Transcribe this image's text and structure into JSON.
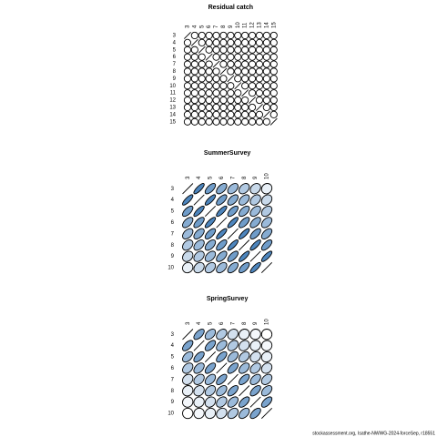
{
  "chart_data": [
    {
      "type": "ellipse-matrix",
      "title": "Residual catch",
      "labels": [
        "3",
        "4",
        "5",
        "6",
        "7",
        "8",
        "9",
        "10",
        "11",
        "12",
        "13",
        "14",
        "15"
      ],
      "color_low": "#ffffff",
      "color_high": "#2166ac",
      "matrix": [
        [
          1,
          0,
          0,
          0,
          0,
          0,
          0,
          0,
          0,
          0,
          0,
          0,
          0
        ],
        [
          0,
          1,
          0,
          0,
          0,
          0,
          0,
          0,
          0,
          0,
          0,
          0,
          0
        ],
        [
          0,
          0,
          1,
          0,
          0,
          0,
          0,
          0,
          0,
          0,
          0,
          0,
          0
        ],
        [
          0,
          0,
          0,
          1,
          0,
          0,
          0,
          0,
          0,
          0,
          0,
          0,
          0
        ],
        [
          0,
          0,
          0,
          0,
          1,
          0,
          0,
          0,
          0,
          0,
          0,
          0,
          0
        ],
        [
          0,
          0,
          0,
          0,
          0,
          1,
          0,
          0,
          0,
          0,
          0,
          0,
          0
        ],
        [
          0,
          0,
          0,
          0,
          0,
          0,
          1,
          0,
          0,
          0,
          0,
          0,
          0
        ],
        [
          0,
          0,
          0,
          0,
          0,
          0,
          0,
          1,
          0,
          0,
          0,
          0,
          0
        ],
        [
          0,
          0,
          0,
          0,
          0,
          0,
          0,
          0,
          1,
          0,
          0,
          0,
          0
        ],
        [
          0,
          0,
          0,
          0,
          0,
          0,
          0,
          0,
          0,
          1,
          0,
          0,
          0
        ],
        [
          0,
          0,
          0,
          0,
          0,
          0,
          0,
          0,
          0,
          0,
          1,
          0,
          0
        ],
        [
          0,
          0,
          0,
          0,
          0,
          0,
          0,
          0,
          0,
          0,
          0,
          1,
          0
        ],
        [
          0,
          0,
          0,
          0,
          0,
          0,
          0,
          0,
          0,
          0,
          0,
          0,
          1
        ]
      ]
    },
    {
      "type": "ellipse-matrix",
      "title": "SummerSurvey",
      "labels": [
        "3",
        "4",
        "5",
        "6",
        "7",
        "8",
        "9",
        "10"
      ],
      "color_low": "#ffffff",
      "color_high": "#2166ac",
      "matrix": [
        [
          1,
          0.8,
          0.65,
          0.55,
          0.45,
          0.35,
          0.25,
          0.1
        ],
        [
          0.8,
          1,
          0.8,
          0.65,
          0.55,
          0.45,
          0.35,
          0.25
        ],
        [
          0.65,
          0.8,
          1,
          0.8,
          0.65,
          0.55,
          0.45,
          0.35
        ],
        [
          0.55,
          0.65,
          0.8,
          1,
          0.8,
          0.65,
          0.55,
          0.45
        ],
        [
          0.45,
          0.55,
          0.65,
          0.8,
          1,
          0.8,
          0.65,
          0.55
        ],
        [
          0.35,
          0.45,
          0.55,
          0.65,
          0.8,
          1,
          0.8,
          0.65
        ],
        [
          0.25,
          0.35,
          0.45,
          0.55,
          0.65,
          0.8,
          1,
          0.8
        ],
        [
          0.1,
          0.25,
          0.35,
          0.45,
          0.55,
          0.65,
          0.8,
          1
        ]
      ]
    },
    {
      "type": "ellipse-matrix",
      "title": "SpringSurvey",
      "labels": [
        "3",
        "4",
        "5",
        "6",
        "7",
        "8",
        "9",
        "10"
      ],
      "color_low": "#ffffff",
      "color_high": "#2166ac",
      "matrix": [
        [
          1,
          0.6,
          0.45,
          0.35,
          0.2,
          0.1,
          0.05,
          0
        ],
        [
          0.6,
          1,
          0.6,
          0.45,
          0.35,
          0.2,
          0.1,
          0.05
        ],
        [
          0.45,
          0.6,
          1,
          0.6,
          0.45,
          0.35,
          0.2,
          0.1
        ],
        [
          0.35,
          0.45,
          0.6,
          1,
          0.6,
          0.45,
          0.35,
          0.2
        ],
        [
          0.2,
          0.35,
          0.45,
          0.6,
          1,
          0.6,
          0.45,
          0.35
        ],
        [
          0.1,
          0.2,
          0.35,
          0.45,
          0.6,
          1,
          0.6,
          0.45
        ],
        [
          0.05,
          0.1,
          0.2,
          0.35,
          0.45,
          0.6,
          1,
          0.6
        ],
        [
          0,
          0.05,
          0.1,
          0.2,
          0.35,
          0.45,
          0.6,
          1
        ]
      ]
    }
  ],
  "footer": "stockassessment.org, Isathe-NWWG-2024-forceSep, r18551"
}
